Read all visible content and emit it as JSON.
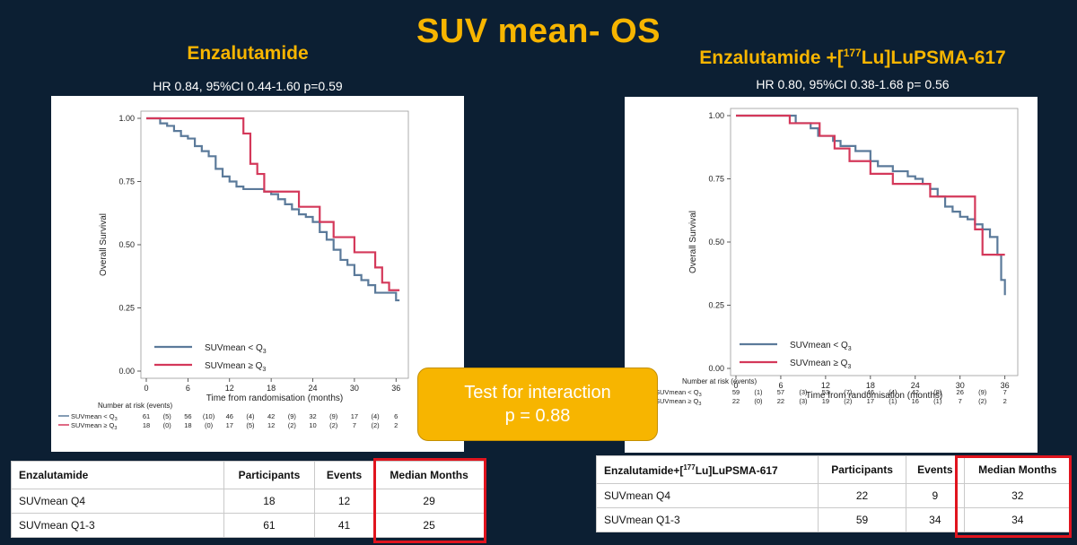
{
  "title": "SUV mean- OS",
  "callout": {
    "line1": "Test for interaction",
    "line2": "p = 0.88"
  },
  "colors": {
    "below_q3": "#5b7a9a",
    "above_q3": "#d4385a",
    "accent": "#f7b500",
    "highlight_box": "#e0141e"
  },
  "chart_data": [
    {
      "type": "line",
      "panel_title": "Enzalutamide",
      "hr_text": "HR 0.84, 95%CI 0.44-1.60  p=0.59",
      "xlabel": "Time from randomisation (months)",
      "ylabel": "Overall Survival",
      "xlim": [
        0,
        37
      ],
      "ylim": [
        0,
        1
      ],
      "x_ticks": [
        0,
        6,
        12,
        18,
        24,
        30,
        36
      ],
      "y_ticks": [
        "0.00",
        "0.25",
        "0.50",
        "0.75",
        "1.00"
      ],
      "legend_position": "bottom-left",
      "series": [
        {
          "name": "SUVmean < Q",
          "name_sub": "3",
          "color": "#5b7a9a",
          "points": [
            [
              0,
              1
            ],
            [
              2,
              0.98
            ],
            [
              3,
              0.97
            ],
            [
              4,
              0.95
            ],
            [
              5,
              0.93
            ],
            [
              6,
              0.92
            ],
            [
              7,
              0.89
            ],
            [
              8,
              0.87
            ],
            [
              9,
              0.85
            ],
            [
              10,
              0.8
            ],
            [
              11,
              0.77
            ],
            [
              12,
              0.75
            ],
            [
              13,
              0.73
            ],
            [
              14,
              0.72
            ],
            [
              16,
              0.72
            ],
            [
              17,
              0.71
            ],
            [
              18,
              0.7
            ],
            [
              19,
              0.68
            ],
            [
              20,
              0.66
            ],
            [
              21,
              0.64
            ],
            [
              22,
              0.62
            ],
            [
              23,
              0.61
            ],
            [
              24,
              0.59
            ],
            [
              25,
              0.55
            ],
            [
              26,
              0.52
            ],
            [
              27,
              0.48
            ],
            [
              28,
              0.44
            ],
            [
              29,
              0.42
            ],
            [
              30,
              0.38
            ],
            [
              31,
              0.36
            ],
            [
              32,
              0.34
            ],
            [
              33,
              0.31
            ],
            [
              35,
              0.31
            ],
            [
              36,
              0.28
            ],
            [
              36.5,
              0.28
            ]
          ]
        },
        {
          "name": "SUVmean ≥ Q",
          "name_sub": "3",
          "color": "#d4385a",
          "points": [
            [
              0,
              1
            ],
            [
              13,
              1
            ],
            [
              14,
              0.94
            ],
            [
              15,
              0.82
            ],
            [
              16,
              0.78
            ],
            [
              17,
              0.71
            ],
            [
              21,
              0.71
            ],
            [
              22,
              0.65
            ],
            [
              25,
              0.59
            ],
            [
              27,
              0.53
            ],
            [
              30,
              0.47
            ],
            [
              33,
              0.41
            ],
            [
              34,
              0.35
            ],
            [
              35,
              0.32
            ],
            [
              36.5,
              0.32
            ]
          ]
        }
      ],
      "risk_table": {
        "header": "Number at risk (events)",
        "rows": [
          {
            "label": "SUVmean < Q",
            "sub": "3",
            "color": "#5b7a9a",
            "values": [
              "61",
              "(5)",
              "56",
              "(10)",
              "46",
              "(4)",
              "42",
              "(9)",
              "32",
              "(9)",
              "17",
              "(4)",
              "6"
            ]
          },
          {
            "label": "SUVmean ≥ Q",
            "sub": "3",
            "color": "#d4385a",
            "values": [
              "18",
              "(0)",
              "18",
              "(0)",
              "17",
              "(5)",
              "12",
              "(2)",
              "10",
              "(2)",
              "7",
              "(2)",
              "2"
            ]
          }
        ]
      }
    },
    {
      "type": "line",
      "panel_title": "Enzalutamide +[",
      "panel_title_sup": "177",
      "panel_title_end": "Lu]LuPSMA-617",
      "hr_text": "HR 0.80, 95%CI 0.38-1.68   p= 0.56",
      "xlabel": "Time from randomisation (months)",
      "ylabel": "Overall Survival",
      "xlim": [
        0,
        37
      ],
      "ylim": [
        0,
        1
      ],
      "x_ticks": [
        0,
        6,
        12,
        18,
        24,
        30,
        36
      ],
      "y_ticks": [
        "0.00",
        "0.25",
        "0.50",
        "0.75",
        "1.00"
      ],
      "legend_position": "bottom-left",
      "series": [
        {
          "name": "SUVmean < Q",
          "name_sub": "3",
          "color": "#5b7a9a",
          "points": [
            [
              0,
              1
            ],
            [
              7,
              1
            ],
            [
              8,
              0.97
            ],
            [
              10,
              0.95
            ],
            [
              11,
              0.92
            ],
            [
              13,
              0.9
            ],
            [
              14,
              0.88
            ],
            [
              16,
              0.86
            ],
            [
              18,
              0.82
            ],
            [
              19,
              0.8
            ],
            [
              21,
              0.78
            ],
            [
              23,
              0.76
            ],
            [
              24,
              0.75
            ],
            [
              25,
              0.73
            ],
            [
              26,
              0.71
            ],
            [
              27,
              0.68
            ],
            [
              28,
              0.64
            ],
            [
              29,
              0.62
            ],
            [
              30,
              0.6
            ],
            [
              31,
              0.59
            ],
            [
              32,
              0.57
            ],
            [
              33,
              0.55
            ],
            [
              34,
              0.52
            ],
            [
              35,
              0.45
            ],
            [
              35.5,
              0.35
            ],
            [
              36,
              0.29
            ]
          ]
        },
        {
          "name": "SUVmean ≥ Q",
          "name_sub": "3",
          "color": "#d4385a",
          "points": [
            [
              0,
              1
            ],
            [
              7,
              1
            ],
            [
              7.2,
              0.97
            ],
            [
              11,
              0.97
            ],
            [
              11.2,
              0.92
            ],
            [
              13,
              0.92
            ],
            [
              13.2,
              0.87
            ],
            [
              15,
              0.87
            ],
            [
              15.2,
              0.82
            ],
            [
              17.8,
              0.82
            ],
            [
              18,
              0.77
            ],
            [
              20.8,
              0.77
            ],
            [
              21,
              0.73
            ],
            [
              25.8,
              0.73
            ],
            [
              26,
              0.68
            ],
            [
              31.8,
              0.68
            ],
            [
              32,
              0.55
            ],
            [
              33,
              0.45
            ],
            [
              36,
              0.45
            ]
          ]
        }
      ],
      "risk_table": {
        "header": "Number at risk (events)",
        "rows": [
          {
            "label": "SUVmean < Q",
            "sub": "3",
            "color": "#5b7a9a",
            "values": [
              "59",
              "(1)",
              "57",
              "(3)",
              "53",
              "(7)",
              "46",
              "(4)",
              "42",
              "(8)",
              "26",
              "(9)",
              "7"
            ]
          },
          {
            "label": "SUVmean ≥ Q",
            "sub": "3",
            "color": "#d4385a",
            "values": [
              "22",
              "(0)",
              "22",
              "(3)",
              "19",
              "(2)",
              "17",
              "(1)",
              "16",
              "(1)",
              "7",
              "(2)",
              "2"
            ]
          }
        ]
      }
    },
    {
      "type": "table",
      "columns": [
        "Enzalutamide",
        "Participants",
        "Events",
        "Median Months"
      ],
      "rows": [
        [
          "SUVmean Q4",
          "18",
          "12",
          "29"
        ],
        [
          "SUVmean Q1-3",
          "61",
          "41",
          "25"
        ]
      ]
    },
    {
      "type": "table",
      "columns": [
        "Enzalutamide+[",
        "Participants",
        "Events",
        "Median Months"
      ],
      "first_header_sup": "177",
      "first_header_end": "Lu]LuPSMA-617",
      "rows": [
        [
          "SUVmean Q4",
          "22",
          "9",
          "32"
        ],
        [
          "SUVmean Q1-3",
          "59",
          "34",
          "34"
        ]
      ]
    }
  ]
}
